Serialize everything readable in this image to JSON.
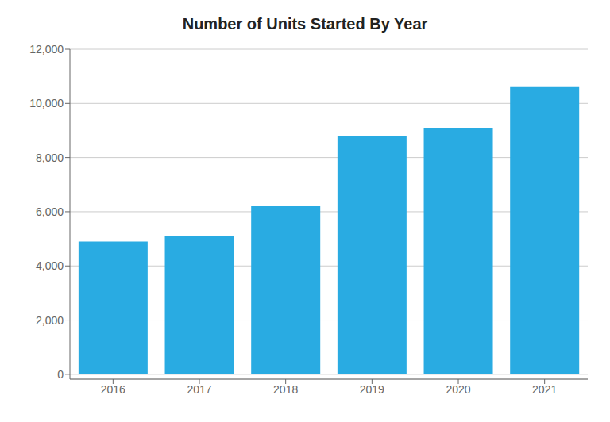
{
  "chart_data": {
    "type": "bar",
    "title": "Number of Units Started By Year",
    "categories": [
      "2016",
      "2017",
      "2018",
      "2019",
      "2020",
      "2021"
    ],
    "values": [
      4900,
      5100,
      6200,
      8800,
      9100,
      10600
    ],
    "color": "#29ABE2",
    "ylim": [
      -180,
      12000
    ],
    "yticks": [
      0,
      {
        "value": 2000,
        "label": "2,000"
      },
      {
        "value": 4000,
        "label": "4,000"
      },
      {
        "value": 6000,
        "label": "6,000"
      },
      {
        "value": 8000,
        "label": "8,000"
      },
      {
        "value": 10000,
        "label": "10,000"
      },
      {
        "value": 12000,
        "label": "12,000"
      }
    ],
    "grid": true
  }
}
